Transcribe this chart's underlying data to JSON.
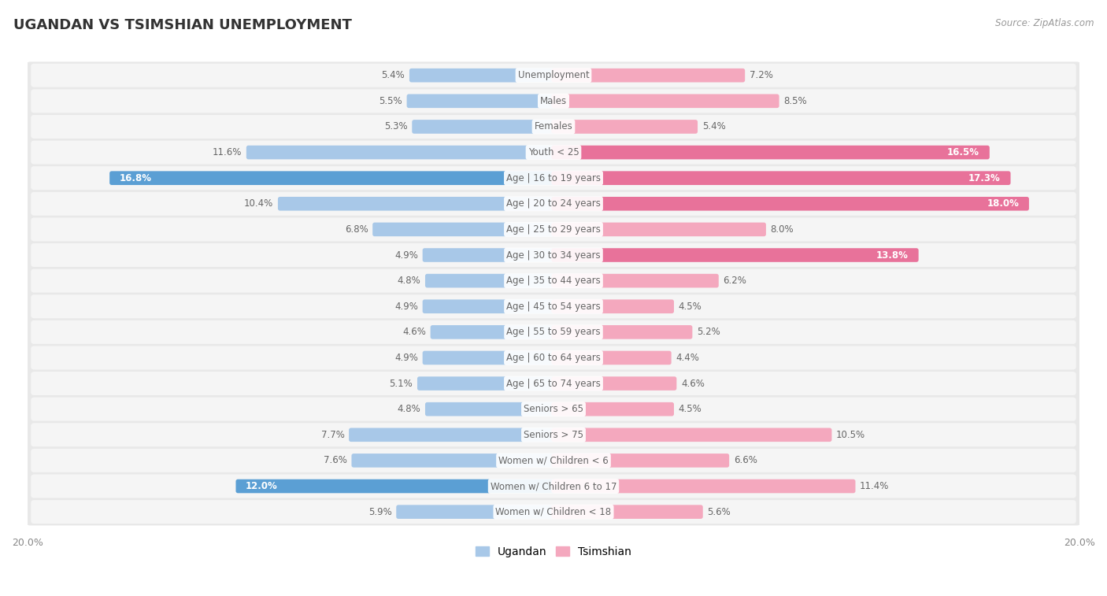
{
  "title": "UGANDAN VS TSIMSHIAN UNEMPLOYMENT",
  "source": "Source: ZipAtlas.com",
  "categories": [
    "Unemployment",
    "Males",
    "Females",
    "Youth < 25",
    "Age | 16 to 19 years",
    "Age | 20 to 24 years",
    "Age | 25 to 29 years",
    "Age | 30 to 34 years",
    "Age | 35 to 44 years",
    "Age | 45 to 54 years",
    "Age | 55 to 59 years",
    "Age | 60 to 64 years",
    "Age | 65 to 74 years",
    "Seniors > 65",
    "Seniors > 75",
    "Women w/ Children < 6",
    "Women w/ Children 6 to 17",
    "Women w/ Children < 18"
  ],
  "ugandan": [
    5.4,
    5.5,
    5.3,
    11.6,
    16.8,
    10.4,
    6.8,
    4.9,
    4.8,
    4.9,
    4.6,
    4.9,
    5.1,
    4.8,
    7.7,
    7.6,
    12.0,
    5.9
  ],
  "tsimshian": [
    7.2,
    8.5,
    5.4,
    16.5,
    17.3,
    18.0,
    8.0,
    13.8,
    6.2,
    4.5,
    5.2,
    4.4,
    4.6,
    4.5,
    10.5,
    6.6,
    11.4,
    5.6
  ],
  "ugandan_color": "#a8c8e8",
  "tsimshian_color": "#f4a8be",
  "ugandan_highlight_color": "#5b9fd4",
  "tsimshian_highlight_color": "#e8729a",
  "max_val": 20.0,
  "bg_color": "#ffffff",
  "row_bg_color": "#e8e8e8",
  "row_inner_color": "#f5f5f5",
  "label_color": "#666666",
  "value_color": "#666666",
  "legend_ugandan": "Ugandan",
  "legend_tsimshian": "Tsimshian"
}
